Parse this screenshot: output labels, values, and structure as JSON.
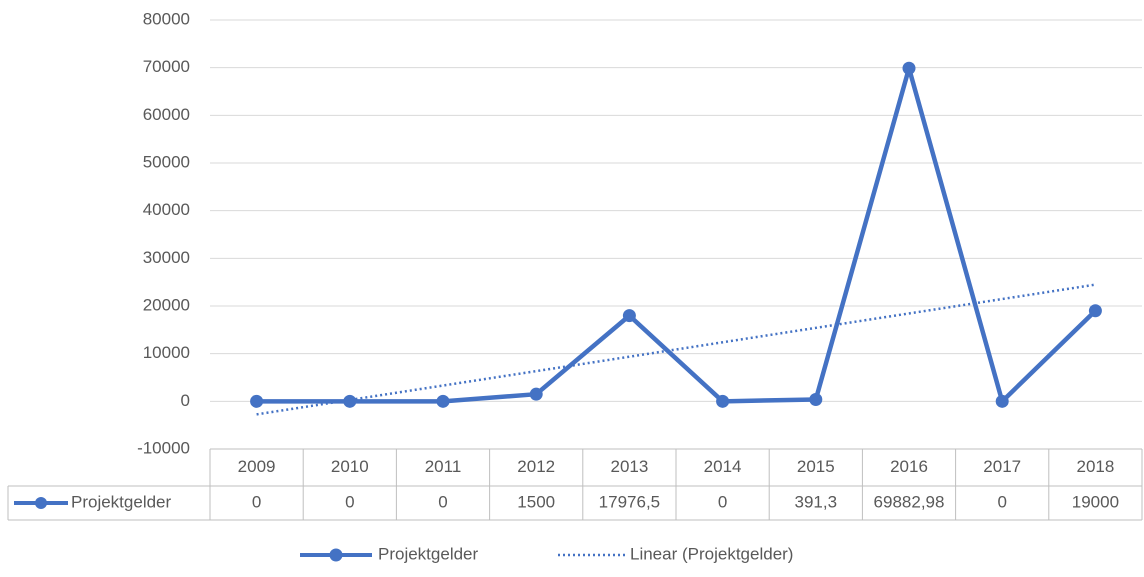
{
  "chart_data": {
    "type": "line",
    "categories": [
      "2009",
      "2010",
      "2011",
      "2012",
      "2013",
      "2014",
      "2015",
      "2016",
      "2017",
      "2018"
    ],
    "series": [
      {
        "name": "Projektgelder",
        "color": "#4472c4",
        "values": [
          0,
          0,
          0,
          1500,
          17976.5,
          0,
          391.3,
          69882.98,
          0,
          19000
        ],
        "value_labels": [
          "0",
          "0",
          "0",
          "1500",
          "17976,5",
          "0",
          "391,3",
          "69882,98",
          "0",
          "19000"
        ]
      }
    ],
    "trendline": {
      "name": "Linear (Projektgelder)",
      "type": "linear"
    },
    "ylim": [
      -10000,
      80000
    ],
    "yticks": [
      -10000,
      0,
      10000,
      20000,
      30000,
      40000,
      50000,
      60000,
      70000,
      80000
    ],
    "grid": true,
    "data_table": true,
    "legend": "bottom"
  }
}
